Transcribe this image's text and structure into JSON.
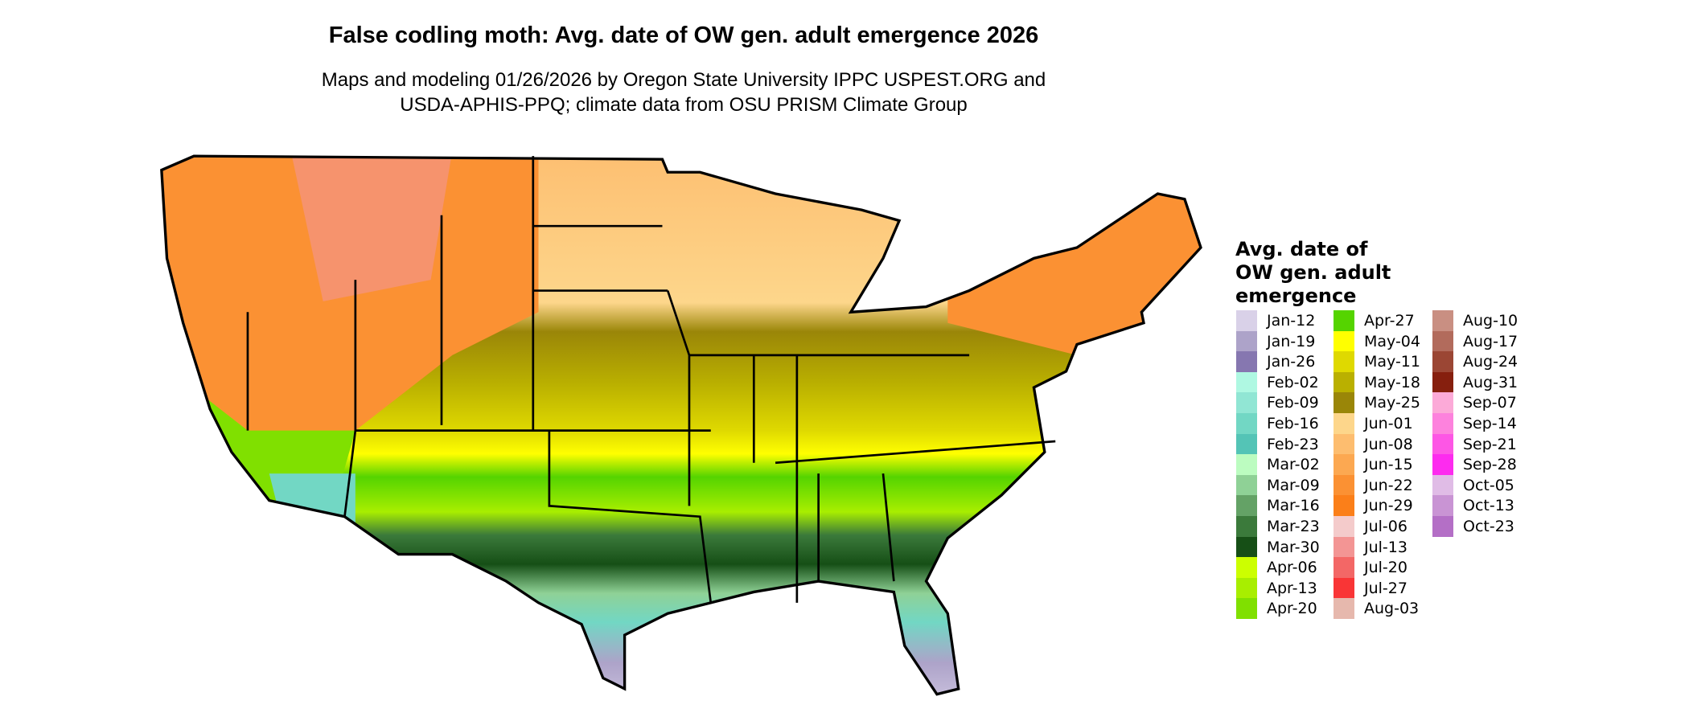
{
  "title": "False codling moth: Avg. date of OW gen. adult emergence 2026",
  "subtitle_line1": "Maps and modeling 01/26/2026 by Oregon State University IPPC USPEST.ORG and",
  "subtitle_line2": "USDA-APHIS-PPQ; climate data from OSU PRISM Climate Group",
  "legend": {
    "title_lines": [
      "Avg. date of",
      "OW gen. adult",
      "emergence"
    ],
    "items": [
      {
        "label": "Jan-12",
        "color": "#d9d1e8"
      },
      {
        "label": "Jan-19",
        "color": "#ada3c9"
      },
      {
        "label": "Jan-26",
        "color": "#8677b0"
      },
      {
        "label": "Feb-02",
        "color": "#aff8e2"
      },
      {
        "label": "Feb-09",
        "color": "#91e6d4"
      },
      {
        "label": "Feb-16",
        "color": "#72d7c4"
      },
      {
        "label": "Feb-23",
        "color": "#54c4b6"
      },
      {
        "label": "Mar-02",
        "color": "#bcfcc0"
      },
      {
        "label": "Mar-09",
        "color": "#8fd196"
      },
      {
        "label": "Mar-16",
        "color": "#64a266"
      },
      {
        "label": "Mar-23",
        "color": "#3b7a3b"
      },
      {
        "label": "Mar-30",
        "color": "#164f16"
      },
      {
        "label": "Apr-06",
        "color": "#ccff00"
      },
      {
        "label": "Apr-13",
        "color": "#a8ee00"
      },
      {
        "label": "Apr-20",
        "color": "#80e000"
      },
      {
        "label": "Apr-27",
        "color": "#55d400"
      },
      {
        "label": "May-04",
        "color": "#ffff00"
      },
      {
        "label": "May-11",
        "color": "#dfd900"
      },
      {
        "label": "May-18",
        "color": "#bab000"
      },
      {
        "label": "May-25",
        "color": "#9a8608"
      },
      {
        "label": "Jun-01",
        "color": "#fdd68b"
      },
      {
        "label": "Jun-08",
        "color": "#fdbd6f"
      },
      {
        "label": "Jun-15",
        "color": "#fca851"
      },
      {
        "label": "Jun-22",
        "color": "#fb9133"
      },
      {
        "label": "Jun-29",
        "color": "#fb7f19"
      },
      {
        "label": "Jul-06",
        "color": "#f4cbcb"
      },
      {
        "label": "Jul-13",
        "color": "#f39594"
      },
      {
        "label": "Jul-20",
        "color": "#f36766"
      },
      {
        "label": "Jul-27",
        "color": "#f93536"
      },
      {
        "label": "Aug-03",
        "color": "#e6b8ad"
      },
      {
        "label": "Aug-10",
        "color": "#c98f82"
      },
      {
        "label": "Aug-17",
        "color": "#b26b5c"
      },
      {
        "label": "Aug-24",
        "color": "#9b4634"
      },
      {
        "label": "Aug-31",
        "color": "#861f0e"
      },
      {
        "label": "Sep-07",
        "color": "#fcaad8"
      },
      {
        "label": "Sep-14",
        "color": "#fd82dd"
      },
      {
        "label": "Sep-21",
        "color": "#fd56e5"
      },
      {
        "label": "Sep-28",
        "color": "#fd2bef"
      },
      {
        "label": "Oct-05",
        "color": "#e0bce6"
      },
      {
        "label": "Oct-13",
        "color": "#c994d4"
      },
      {
        "label": "Oct-23",
        "color": "#b46fc6"
      }
    ]
  }
}
